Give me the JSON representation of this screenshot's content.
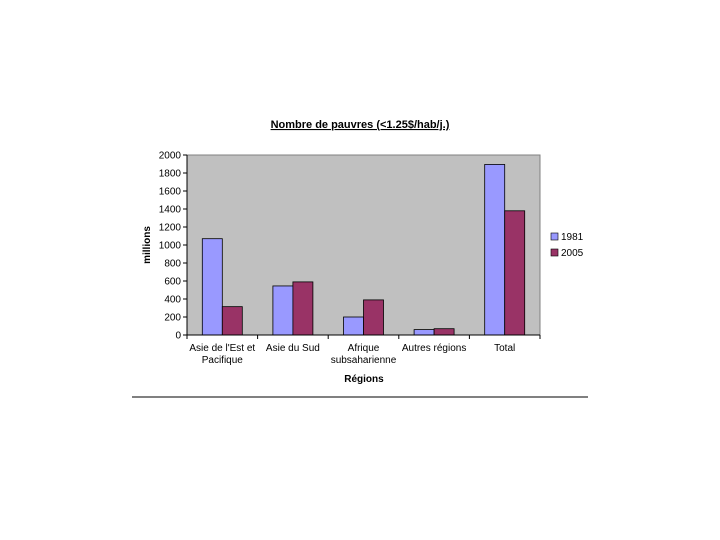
{
  "chart_data": {
    "type": "bar",
    "title": "Nombre de pauvres (<1.25$/hab/j.)",
    "xlabel": "Régions",
    "ylabel": "millions",
    "ylim": [
      0,
      2000
    ],
    "yticks": [
      0,
      200,
      400,
      600,
      800,
      1000,
      1200,
      1400,
      1600,
      1800,
      2000
    ],
    "categories": [
      [
        "Asie de l'Est et",
        "Pacifique"
      ],
      [
        "Asie du Sud"
      ],
      [
        "Afrique",
        "subsaharienne"
      ],
      [
        "Autres régions"
      ],
      [
        "Total"
      ]
    ],
    "series": [
      {
        "name": "1981",
        "color": "#9999ff",
        "values": [
          1070,
          545,
          200,
          60,
          1895
        ]
      },
      {
        "name": "2005",
        "color": "#993366",
        "values": [
          315,
          590,
          390,
          70,
          1380
        ]
      }
    ],
    "grid": false,
    "legend": "right",
    "plot_background": "#c0c0c0"
  }
}
